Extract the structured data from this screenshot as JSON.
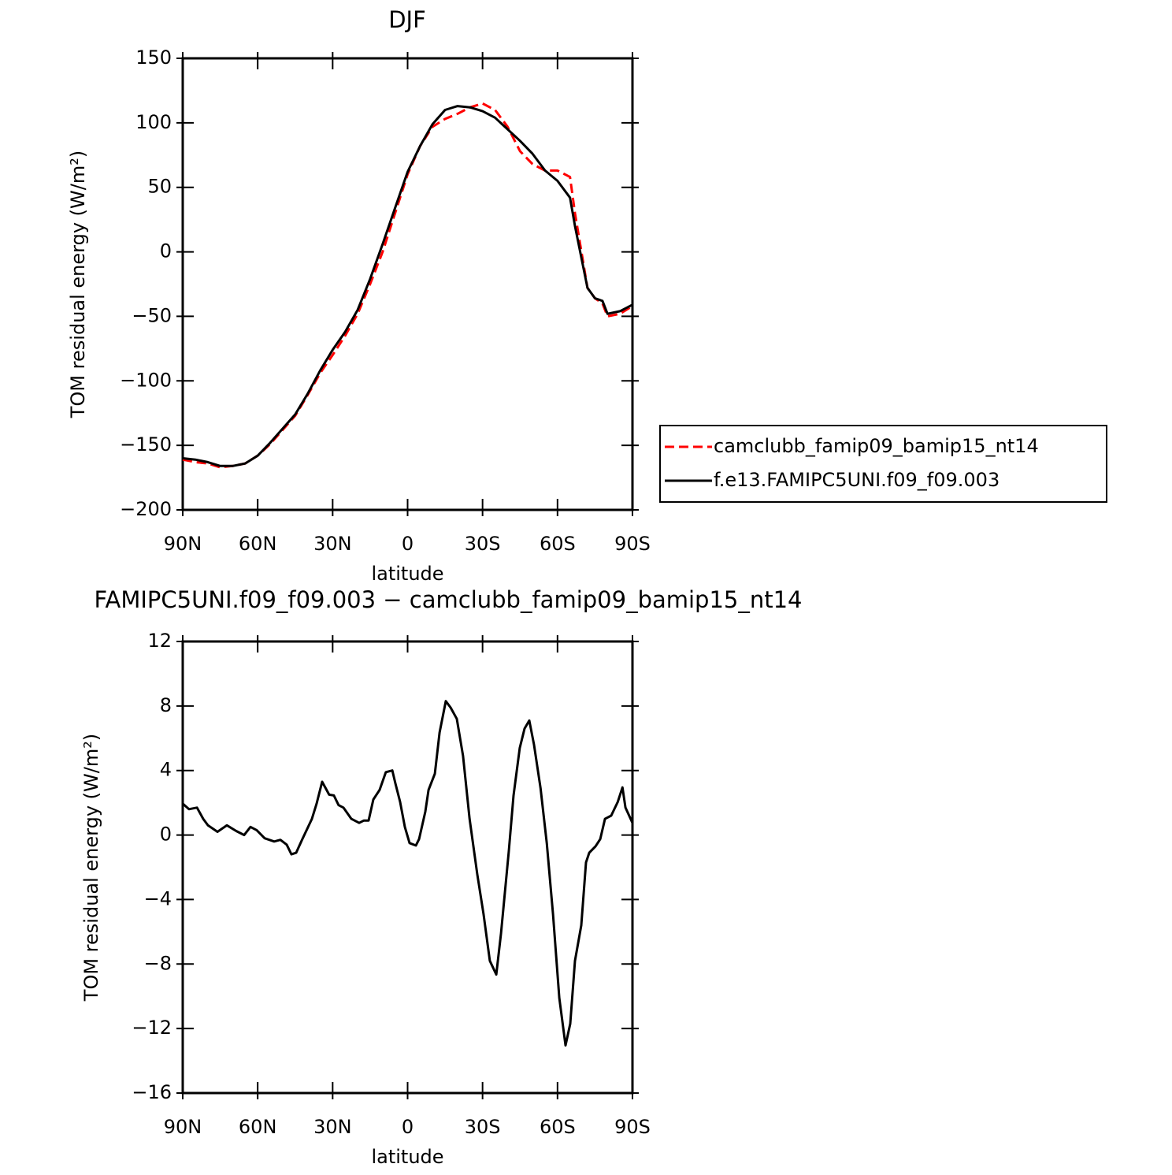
{
  "chart_data": [
    {
      "type": "line",
      "title": "DJF",
      "xlabel": "latitude",
      "ylabel": "TOM residual energy (W/m²)",
      "x": [
        90,
        85,
        80,
        75,
        70,
        65,
        60,
        55,
        50,
        45,
        40,
        35,
        30,
        25,
        20,
        15,
        10,
        5,
        0,
        -5,
        -10,
        -15,
        -20,
        -25,
        -30,
        -35,
        -40,
        -45,
        -50,
        -55,
        -60,
        -65,
        -67,
        -70,
        -72,
        -75,
        -78,
        -80,
        -85,
        -90
      ],
      "series": [
        {
          "name": "camclubb_famip09_bamip15_nt14",
          "color": "#ff0000",
          "linestyle": "dashed",
          "values": [
            -161,
            -163,
            -164,
            -167,
            -166,
            -164,
            -158,
            -149,
            -138,
            -127,
            -111,
            -94,
            -80,
            -65,
            -48,
            -25,
            0,
            30,
            60,
            82,
            97,
            103,
            107,
            112,
            115,
            110,
            97,
            78,
            68,
            63,
            63,
            58,
            30,
            -5,
            -28,
            -36,
            -40,
            -50,
            -48,
            -42
          ]
        },
        {
          "name": "f.e13.FAMIPC5UNI.f09_f09.003",
          "color": "#000000",
          "linestyle": "solid",
          "values": [
            -160,
            -161,
            -163,
            -166,
            -166,
            -164,
            -158,
            -148,
            -137,
            -126,
            -110,
            -92,
            -76,
            -62,
            -45,
            -21,
            6,
            34,
            62,
            82,
            99,
            110,
            113,
            112,
            109,
            104,
            95,
            86,
            76,
            63,
            55,
            42,
            20,
            -9,
            -28,
            -36,
            -38,
            -48,
            -46,
            -41
          ]
        }
      ],
      "xlim": [
        90,
        -90
      ],
      "xticks": [
        {
          "value": 90,
          "label": "90N"
        },
        {
          "value": 60,
          "label": "60N"
        },
        {
          "value": 30,
          "label": "30N"
        },
        0,
        {
          "value": -30,
          "label": "30S"
        },
        {
          "value": -60,
          "label": "60S"
        },
        {
          "value": -90,
          "label": "90S"
        }
      ],
      "ylim": [
        -200,
        150
      ],
      "yticks": [
        {
          "value": -200,
          "label": "−200"
        },
        {
          "value": -150,
          "label": "−150"
        },
        {
          "value": -100,
          "label": "−100"
        },
        {
          "value": -50,
          "label": "−50"
        },
        0,
        50,
        100,
        150
      ],
      "legend": "right"
    },
    {
      "type": "line",
      "title": "FAMIPC5UNI.f09_f09.003 − camclubb_famip09_bamip15_nt14",
      "xlabel": "latitude",
      "ylabel": "TOM residual energy (W/m²)",
      "x": [
        90,
        87.5,
        84.3,
        81.8,
        79.9,
        76.1,
        72.3,
        68.6,
        65.4,
        62.9,
        60.4,
        57.2,
        53.4,
        50.9,
        48.4,
        46.5,
        44.6,
        42.1,
        38.3,
        36.4,
        34.2,
        31.4,
        29.5,
        27.6,
        25.7,
        22.5,
        19.4,
        17.5,
        15.6,
        13.7,
        11.2,
        8.7,
        6.1,
        4.9,
        3.0,
        1.1,
        -0.8,
        -3.3,
        -4.6,
        -7.1,
        -8.4,
        -10.9,
        -12.8,
        -15.3,
        -17.2,
        -19.7,
        -22.2,
        -24.8,
        -27.9,
        -30.4,
        -32.9,
        -35.5,
        -37.4,
        -40.5,
        -42.4,
        -44.9,
        -46.8,
        -48.7,
        -50.6,
        -53.2,
        -55.7,
        -58.2,
        -60.7,
        -63.2,
        -65.1,
        -67.0,
        -69.5,
        -71.4,
        -72.7,
        -75.2,
        -77.1,
        -79.0,
        -81.5,
        -84.1,
        -86.0,
        -87.2,
        -90
      ],
      "values": [
        1.95,
        1.6,
        1.7,
        1.0,
        0.6,
        0.2,
        0.6,
        0.25,
        0,
        0.5,
        0.3,
        -0.2,
        -0.4,
        -0.3,
        -0.6,
        -1.2,
        -1.1,
        -0.25,
        1.0,
        1.95,
        3.3,
        2.5,
        2.45,
        1.85,
        1.7,
        1.0,
        0.75,
        0.9,
        0.9,
        2.2,
        2.8,
        3.9,
        4.0,
        3.2,
        2.05,
        0.5,
        -0.5,
        -0.65,
        -0.25,
        1.45,
        2.8,
        3.8,
        6.35,
        8.3,
        7.9,
        7.2,
        4.9,
        1.0,
        -2.45,
        -4.9,
        -7.8,
        -8.65,
        -6.1,
        -1.0,
        2.45,
        5.4,
        6.6,
        7.1,
        5.6,
        2.9,
        -0.5,
        -4.9,
        -10.1,
        -13.05,
        -11.7,
        -7.8,
        -5.6,
        -1.7,
        -1.1,
        -0.7,
        -0.25,
        1.0,
        1.2,
        2.05,
        2.95,
        1.7,
        0.75
      ],
      "color": "#000000",
      "xlim": [
        90,
        -90
      ],
      "xticks": [
        {
          "value": 90,
          "label": "90N"
        },
        {
          "value": 60,
          "label": "60N"
        },
        {
          "value": 30,
          "label": "30N"
        },
        0,
        {
          "value": -30,
          "label": "30S"
        },
        {
          "value": -60,
          "label": "60S"
        },
        {
          "value": -90,
          "label": "90S"
        }
      ],
      "ylim": [
        -16,
        12
      ],
      "yticks": [
        {
          "value": -16,
          "label": "−16"
        },
        {
          "value": -12,
          "label": "−12"
        },
        {
          "value": -8,
          "label": "−8"
        },
        {
          "value": -4,
          "label": "−4"
        },
        0,
        4,
        8,
        12
      ]
    }
  ]
}
